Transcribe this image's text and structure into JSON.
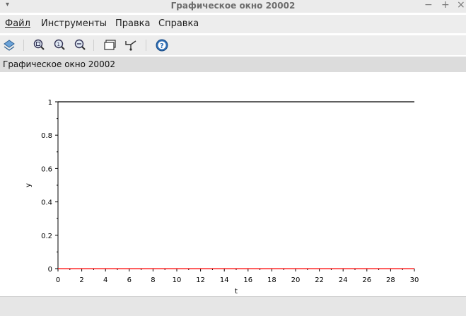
{
  "window": {
    "title": "Графическое окно 20002",
    "menu_arrow": "▾",
    "minimize": "−",
    "maximize": "+",
    "close": "×"
  },
  "menu": {
    "file": "Файл",
    "tools": "Инструменты",
    "edit": "Правка",
    "help": "Справка"
  },
  "toolbar_icons": [
    "rotate-icon",
    "zoom-area-icon",
    "zoom-in-icon",
    "zoom-out-icon",
    "window-icon",
    "datatip-icon",
    "help-icon"
  ],
  "infobar": {
    "label": "Графическое окно 20002"
  },
  "chart_data": {
    "type": "line",
    "xlabel": "t",
    "ylabel": "y",
    "xlim": [
      0,
      30
    ],
    "ylim": [
      0,
      1
    ],
    "x_ticks": [
      0,
      2,
      4,
      6,
      8,
      10,
      12,
      14,
      16,
      18,
      20,
      22,
      24,
      26,
      28,
      30
    ],
    "y_ticks": [
      0,
      0.2,
      0.4,
      0.6,
      0.8,
      1
    ],
    "y_tick_labels": [
      "0",
      "0.2",
      "0.4",
      "0.6",
      "0.8",
      "1"
    ],
    "series": [
      {
        "color": "#000000",
        "x": [
          0,
          30
        ],
        "y": [
          1,
          1
        ]
      },
      {
        "color": "#ff0000",
        "x": [
          0,
          30
        ],
        "y": [
          0,
          0
        ]
      }
    ]
  }
}
